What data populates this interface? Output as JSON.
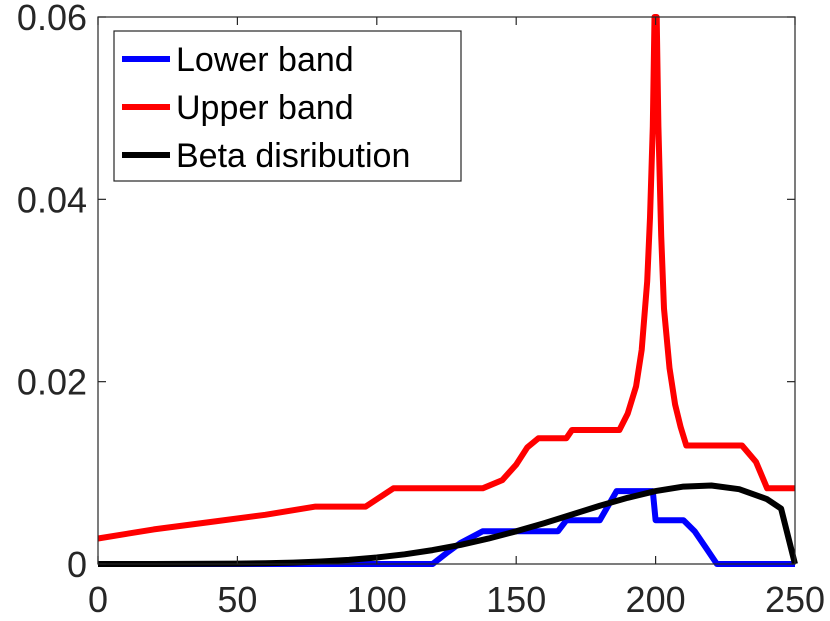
{
  "chart_data": {
    "type": "line",
    "title": "",
    "xlabel": "",
    "ylabel": "",
    "xlim": [
      0,
      250
    ],
    "ylim": [
      0,
      0.06
    ],
    "xticks": [
      0,
      50,
      100,
      150,
      200,
      250
    ],
    "xtick_labels": [
      "0",
      "50",
      "100",
      "150",
      "200",
      "250"
    ],
    "yticks": [
      0,
      0.02,
      0.04,
      0.06
    ],
    "ytick_labels": [
      "0",
      "0.02",
      "0.04",
      "0.06"
    ],
    "grid": false,
    "legend_position": "top-left",
    "series": [
      {
        "name": "Lower band",
        "color": "#0000ff",
        "x": [
          0,
          120,
          125,
          130,
          135,
          138,
          165,
          168,
          180,
          186,
          199,
          200,
          210,
          214,
          218,
          222,
          250
        ],
        "y": [
          0,
          0,
          0.0012,
          0.0023,
          0.0031,
          0.0036,
          0.0036,
          0.0048,
          0.0048,
          0.008,
          0.008,
          0.0048,
          0.0048,
          0.0036,
          0.0018,
          0,
          0
        ]
      },
      {
        "name": "Upper band",
        "color": "#ff0000",
        "x": [
          0,
          20,
          40,
          60,
          78,
          96,
          106,
          138,
          145,
          150,
          154,
          158,
          168,
          170,
          187,
          190,
          193,
          195,
          197,
          198,
          199,
          199.6,
          200.4,
          201,
          202,
          203,
          205,
          207,
          209,
          211,
          231,
          236,
          240,
          250
        ],
        "y": [
          0.0028,
          0.0038,
          0.0046,
          0.0054,
          0.0063,
          0.0063,
          0.0083,
          0.0083,
          0.0092,
          0.0109,
          0.0128,
          0.0138,
          0.0138,
          0.0147,
          0.0147,
          0.0165,
          0.0195,
          0.0235,
          0.031,
          0.038,
          0.048,
          0.06,
          0.06,
          0.048,
          0.036,
          0.028,
          0.0215,
          0.0175,
          0.015,
          0.013,
          0.013,
          0.0112,
          0.0083,
          0.0083
        ]
      },
      {
        "name": "Beta disribution",
        "color": "#000000",
        "x": [
          0,
          10,
          20,
          30,
          40,
          50,
          60,
          70,
          80,
          90,
          100,
          110,
          120,
          130,
          140,
          150,
          160,
          170,
          180,
          190,
          200,
          210,
          220,
          230,
          240,
          245,
          250
        ],
        "y": [
          0,
          1e-06,
          3e-06,
          7e-06,
          1.8e-05,
          4e-05,
          8e-05,
          0.00015,
          0.00027,
          0.00045,
          0.00071,
          0.00106,
          0.00152,
          0.00209,
          0.00279,
          0.00359,
          0.00448,
          0.00543,
          0.00638,
          0.00726,
          0.008,
          0.00849,
          0.00861,
          0.00821,
          0.00711,
          0.00608,
          0.0
        ]
      }
    ]
  }
}
